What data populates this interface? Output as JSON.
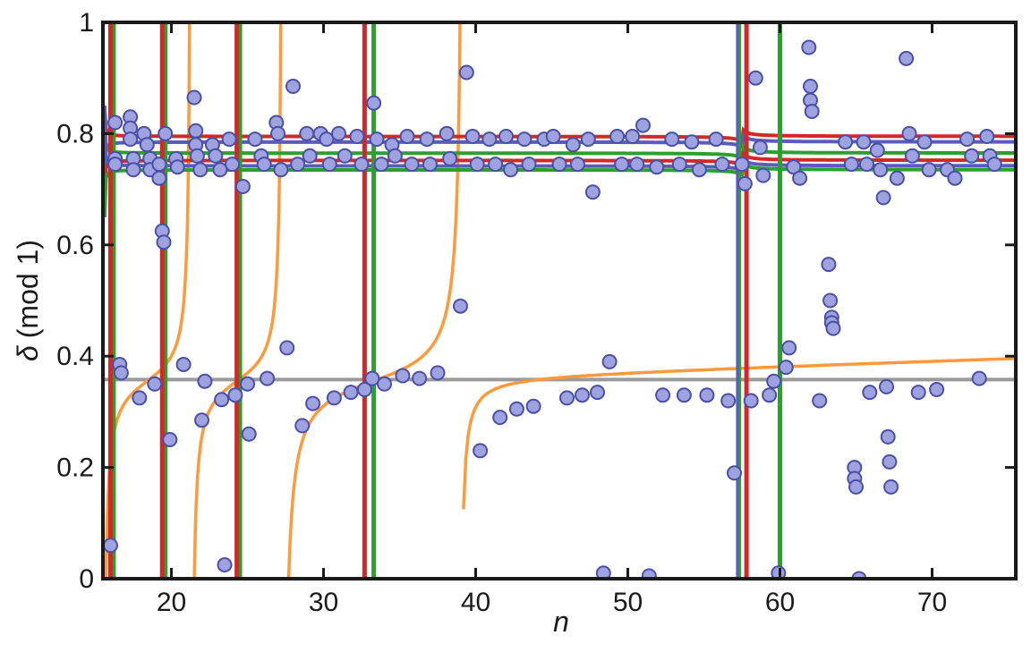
{
  "chart_data": {
    "type": "scatter",
    "xlabel": "n",
    "ylabel": {
      "symbol": "δ",
      "suffix": "(mod 1)"
    },
    "xlim": [
      15.5,
      75.5
    ],
    "ylim": [
      0,
      1
    ],
    "xticks": [
      20,
      30,
      40,
      50,
      60,
      70
    ],
    "yticks": [
      0,
      0.2,
      0.4,
      0.6,
      0.8,
      1
    ],
    "ytick_labels": [
      "0",
      "0.2",
      "0.4",
      "0.6",
      "0.8",
      "1"
    ],
    "grid": false,
    "legend": "none",
    "colors": {
      "red": "#d62728",
      "green": "#2ca02c",
      "blue": "#5b5bbf",
      "orange": "#ff9a3c",
      "gray": "#9a9a9a",
      "marker_fill": "#9ea3e0",
      "marker_edge": "#4a4fa8"
    },
    "reference_line": {
      "y": 0.358
    },
    "vertical_lines": {
      "red": [
        16.0,
        19.4,
        24.3,
        32.7,
        57.8
      ],
      "green": [
        16.2,
        19.6,
        24.5,
        33.3,
        57.3,
        60.0
      ],
      "blue": [
        57.2
      ]
    },
    "near_horizontal_curves": [
      {
        "color": "red",
        "level": 0.795
      },
      {
        "color": "blue",
        "level": 0.785
      },
      {
        "color": "green",
        "level": 0.765
      },
      {
        "color": "red",
        "level": 0.752
      },
      {
        "color": "blue",
        "level": 0.742
      },
      {
        "color": "green",
        "level": 0.735
      }
    ],
    "orange_curve": {
      "asymptotes": [
        21.3,
        27.3,
        39.2
      ],
      "branch_end": 1.0
    },
    "points": [
      [
        16.0,
        0.06
      ],
      [
        16.3,
        0.82
      ],
      [
        16.3,
        0.755
      ],
      [
        16.3,
        0.745
      ],
      [
        16.6,
        0.385
      ],
      [
        16.7,
        0.37
      ],
      [
        17.3,
        0.83
      ],
      [
        17.3,
        0.81
      ],
      [
        17.3,
        0.79
      ],
      [
        17.5,
        0.755
      ],
      [
        17.5,
        0.735
      ],
      [
        17.9,
        0.325
      ],
      [
        18.2,
        0.8
      ],
      [
        18.4,
        0.78
      ],
      [
        18.6,
        0.755
      ],
      [
        18.6,
        0.735
      ],
      [
        18.9,
        0.35
      ],
      [
        19.2,
        0.745
      ],
      [
        19.2,
        0.72
      ],
      [
        19.4,
        0.625
      ],
      [
        19.5,
        0.605
      ],
      [
        19.6,
        0.8
      ],
      [
        19.9,
        0.25
      ],
      [
        20.3,
        0.755
      ],
      [
        20.4,
        0.74
      ],
      [
        20.8,
        0.385
      ],
      [
        21.5,
        0.865
      ],
      [
        21.6,
        0.805
      ],
      [
        21.6,
        0.78
      ],
      [
        21.7,
        0.76
      ],
      [
        21.9,
        0.735
      ],
      [
        22.0,
        0.285
      ],
      [
        22.2,
        0.355
      ],
      [
        22.7,
        0.78
      ],
      [
        22.9,
        0.76
      ],
      [
        23.2,
        0.735
      ],
      [
        23.3,
        0.322
      ],
      [
        23.5,
        0.025
      ],
      [
        23.8,
        0.79
      ],
      [
        24.0,
        0.745
      ],
      [
        24.2,
        0.33
      ],
      [
        24.7,
        0.705
      ],
      [
        25.0,
        0.35
      ],
      [
        25.1,
        0.26
      ],
      [
        25.5,
        0.79
      ],
      [
        25.9,
        0.76
      ],
      [
        26.1,
        0.745
      ],
      [
        26.3,
        0.36
      ],
      [
        26.9,
        0.82
      ],
      [
        27.0,
        0.8
      ],
      [
        27.2,
        0.735
      ],
      [
        27.6,
        0.415
      ],
      [
        28.0,
        0.885
      ],
      [
        28.3,
        0.745
      ],
      [
        28.6,
        0.275
      ],
      [
        28.9,
        0.8
      ],
      [
        29.1,
        0.76
      ],
      [
        29.3,
        0.315
      ],
      [
        29.8,
        0.8
      ],
      [
        30.2,
        0.79
      ],
      [
        30.4,
        0.745
      ],
      [
        30.7,
        0.325
      ],
      [
        31.0,
        0.8
      ],
      [
        31.4,
        0.76
      ],
      [
        31.8,
        0.335
      ],
      [
        32.2,
        0.795
      ],
      [
        32.5,
        0.745
      ],
      [
        32.7,
        0.34
      ],
      [
        33.2,
        0.36
      ],
      [
        33.3,
        0.855
      ],
      [
        33.5,
        0.79
      ],
      [
        33.8,
        0.745
      ],
      [
        34.0,
        0.35
      ],
      [
        34.5,
        0.78
      ],
      [
        34.7,
        0.76
      ],
      [
        35.2,
        0.365
      ],
      [
        35.5,
        0.795
      ],
      [
        35.8,
        0.745
      ],
      [
        36.3,
        0.36
      ],
      [
        36.8,
        0.79
      ],
      [
        37.0,
        0.745
      ],
      [
        37.5,
        0.37
      ],
      [
        38.1,
        0.8
      ],
      [
        38.3,
        0.755
      ],
      [
        39.0,
        0.49
      ],
      [
        39.4,
        0.91
      ],
      [
        39.8,
        0.795
      ],
      [
        40.1,
        0.745
      ],
      [
        40.3,
        0.23
      ],
      [
        40.9,
        0.79
      ],
      [
        41.3,
        0.745
      ],
      [
        41.6,
        0.29
      ],
      [
        42.0,
        0.795
      ],
      [
        42.3,
        0.735
      ],
      [
        42.7,
        0.305
      ],
      [
        43.2,
        0.79
      ],
      [
        43.5,
        0.745
      ],
      [
        43.8,
        0.31
      ],
      [
        44.5,
        0.79
      ],
      [
        45.1,
        0.795
      ],
      [
        45.5,
        0.745
      ],
      [
        46.0,
        0.325
      ],
      [
        46.4,
        0.78
      ],
      [
        46.7,
        0.745
      ],
      [
        47.0,
        0.33
      ],
      [
        47.4,
        0.79
      ],
      [
        47.7,
        0.695
      ],
      [
        48.0,
        0.335
      ],
      [
        48.4,
        0.01
      ],
      [
        48.8,
        0.39
      ],
      [
        49.3,
        0.795
      ],
      [
        49.6,
        0.745
      ],
      [
        50.3,
        0.795
      ],
      [
        50.6,
        0.745
      ],
      [
        51.0,
        0.815
      ],
      [
        51.4,
        0.005
      ],
      [
        51.9,
        0.74
      ],
      [
        52.3,
        0.33
      ],
      [
        52.9,
        0.79
      ],
      [
        53.4,
        0.745
      ],
      [
        53.7,
        0.33
      ],
      [
        54.2,
        0.785
      ],
      [
        54.7,
        0.735
      ],
      [
        55.2,
        0.33
      ],
      [
        55.8,
        0.79
      ],
      [
        56.2,
        0.745
      ],
      [
        56.6,
        0.32
      ],
      [
        57.0,
        0.19
      ],
      [
        57.5,
        0.745
      ],
      [
        57.7,
        0.71
      ],
      [
        58.1,
        0.32
      ],
      [
        58.4,
        0.9
      ],
      [
        58.7,
        0.775
      ],
      [
        58.9,
        0.725
      ],
      [
        59.3,
        0.33
      ],
      [
        59.6,
        0.355
      ],
      [
        59.9,
        0.01
      ],
      [
        60.4,
        0.38
      ],
      [
        60.6,
        0.415
      ],
      [
        60.9,
        0.74
      ],
      [
        61.3,
        0.72
      ],
      [
        61.9,
        0.955
      ],
      [
        62.0,
        0.885
      ],
      [
        62.0,
        0.86
      ],
      [
        62.1,
        0.84
      ],
      [
        62.6,
        0.32
      ],
      [
        63.2,
        0.565
      ],
      [
        63.3,
        0.5
      ],
      [
        63.4,
        0.47
      ],
      [
        63.4,
        0.46
      ],
      [
        63.5,
        0.45
      ],
      [
        64.3,
        0.785
      ],
      [
        64.7,
        0.745
      ],
      [
        64.9,
        0.2
      ],
      [
        64.9,
        0.18
      ],
      [
        65.0,
        0.165
      ],
      [
        65.2,
        0.0
      ],
      [
        65.5,
        0.785
      ],
      [
        65.7,
        0.745
      ],
      [
        65.9,
        0.335
      ],
      [
        66.4,
        0.77
      ],
      [
        66.6,
        0.735
      ],
      [
        66.8,
        0.685
      ],
      [
        67.0,
        0.345
      ],
      [
        67.1,
        0.255
      ],
      [
        67.2,
        0.21
      ],
      [
        67.3,
        0.165
      ],
      [
        67.7,
        0.72
      ],
      [
        68.3,
        0.935
      ],
      [
        68.5,
        0.8
      ],
      [
        68.7,
        0.76
      ],
      [
        69.1,
        0.335
      ],
      [
        69.5,
        0.785
      ],
      [
        69.8,
        0.735
      ],
      [
        70.3,
        0.34
      ],
      [
        71.0,
        0.735
      ],
      [
        71.5,
        0.72
      ],
      [
        72.3,
        0.79
      ],
      [
        72.6,
        0.76
      ],
      [
        73.1,
        0.36
      ],
      [
        73.6,
        0.795
      ],
      [
        73.8,
        0.76
      ],
      [
        74.1,
        0.745
      ]
    ]
  }
}
